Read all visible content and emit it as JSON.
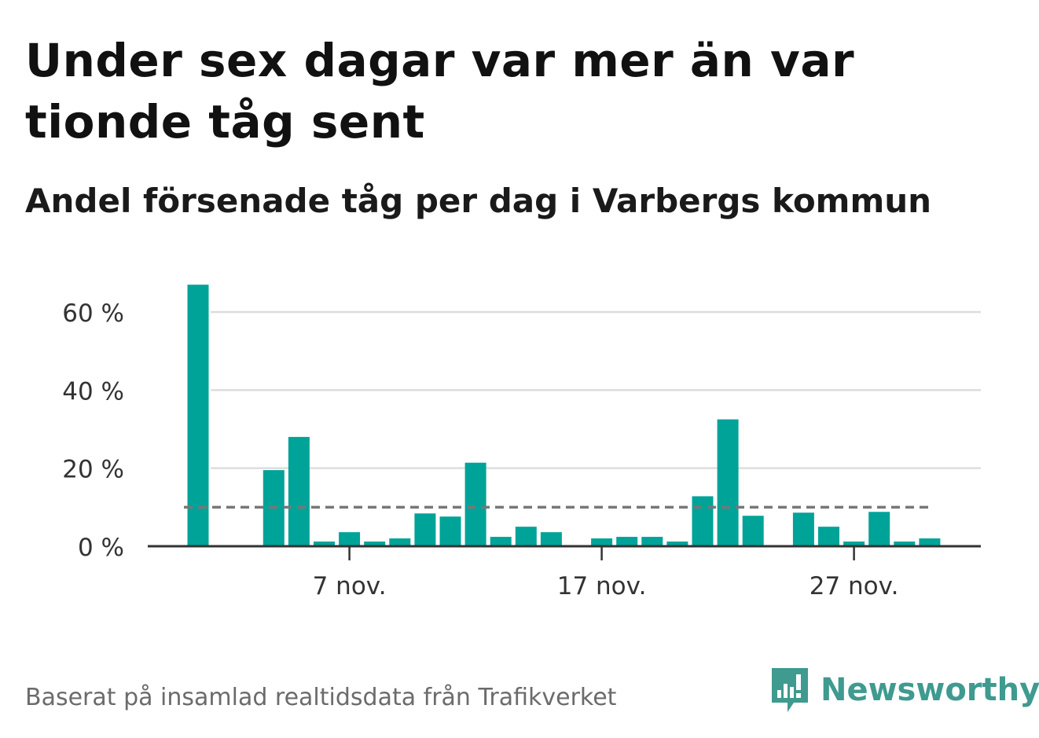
{
  "title": "Under sex dagar var mer än var tionde tåg sent",
  "subtitle": "Andel försenade tåg per dag i Varbergs kommun",
  "source": "Baserat på insamlad realtidsdata från Trafikverket",
  "brand": {
    "name": "Newsworthy",
    "icon": "newsworthy-logo-icon"
  },
  "colors": {
    "bar": "#00a398",
    "average_line": "#777777",
    "grid": "#dddddd",
    "axis": "#333333"
  },
  "chart_data": {
    "type": "bar",
    "x": [
      "1 nov.",
      "2 nov.",
      "3 nov.",
      "4 nov.",
      "5 nov.",
      "6 nov.",
      "7 nov.",
      "8 nov.",
      "9 nov.",
      "10 nov.",
      "11 nov.",
      "12 nov.",
      "13 nov.",
      "14 nov.",
      "15 nov.",
      "16 nov.",
      "17 nov.",
      "18 nov.",
      "19 nov.",
      "20 nov.",
      "21 nov.",
      "22 nov.",
      "23 nov.",
      "24 nov.",
      "25 nov.",
      "26 nov.",
      "27 nov.",
      "28 nov.",
      "29 nov.",
      "30 nov."
    ],
    "values": [
      67,
      0,
      0,
      19.5,
      28,
      1.2,
      3.6,
      1.2,
      2,
      8.4,
      7.6,
      21.4,
      2.4,
      5,
      3.6,
      0,
      2,
      2.4,
      2.4,
      1.2,
      12.8,
      32.5,
      7.8,
      0,
      8.6,
      5,
      1.2,
      8.8,
      1.2,
      2
    ],
    "average": 10,
    "ylim": [
      0,
      70
    ],
    "yticks": [
      0,
      20,
      40,
      60
    ],
    "ytick_labels": [
      "0 %",
      "20 %",
      "40 %",
      "60 %"
    ],
    "xtick_labels": [
      "7 nov.",
      "17 nov.",
      "27 nov."
    ],
    "xtick_days": [
      7,
      17,
      27
    ],
    "grid": true,
    "xlabel": "",
    "ylabel": ""
  }
}
